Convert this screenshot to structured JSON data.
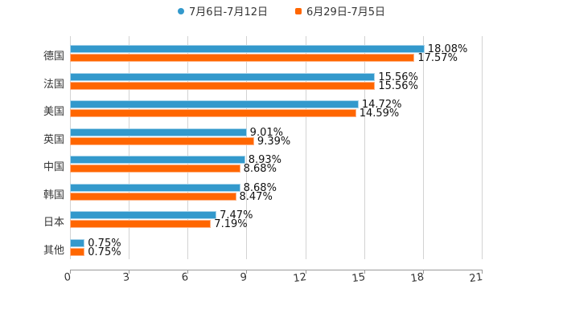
{
  "legend": [
    {
      "label": "7月6日-7月12日",
      "color": "#3399cc",
      "marker": "circle"
    },
    {
      "label": "6月29日-7月5日",
      "color": "#ff6600",
      "marker": "square"
    }
  ],
  "chart_data": {
    "type": "bar",
    "orientation": "horizontal",
    "title": "",
    "xlabel": "",
    "ylabel": "",
    "xlim": [
      0,
      21
    ],
    "x_ticks": [
      "0",
      "3",
      "6",
      "9",
      "12",
      "15",
      "18",
      "21"
    ],
    "grid": true,
    "legend_position": "top",
    "categories": [
      "德国",
      "法国",
      "美国",
      "英国",
      "中国",
      "韩国",
      "日本",
      "其他"
    ],
    "series": [
      {
        "name": "7月6日-7月12日",
        "color": "#3399cc",
        "values": [
          18.08,
          15.56,
          14.72,
          9.01,
          8.93,
          8.68,
          7.47,
          0.75
        ],
        "labels": [
          "18.08%",
          "15.56%",
          "14.72%",
          "9.01%",
          "8.93%",
          "8.68%",
          "7.47%",
          "0.75%"
        ]
      },
      {
        "name": "6月29日-7月5日",
        "color": "#ff6600",
        "values": [
          17.57,
          15.56,
          14.59,
          9.39,
          8.68,
          8.47,
          7.19,
          0.75
        ],
        "labels": [
          "17.57%",
          "15.56%",
          "14.59%",
          "9.39%",
          "8.68%",
          "8.47%",
          "7.19%",
          "0.75%"
        ]
      }
    ]
  }
}
